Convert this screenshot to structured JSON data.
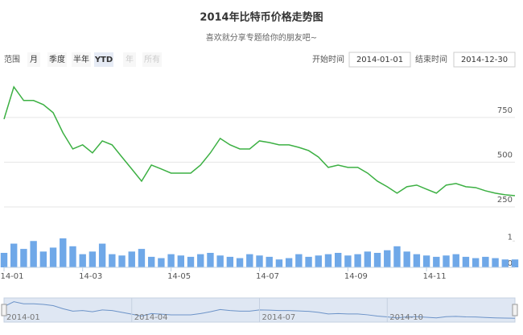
{
  "title": "2014年比特币价格走势图",
  "subtitle": "喜欢就分享专题给你的朋友吧~",
  "range_selector": {
    "label": "范围",
    "buttons": [
      "月",
      "季度",
      "半年",
      "YTD",
      "年",
      "所有"
    ],
    "selected": "YTD",
    "disabled": [
      "年",
      "所有"
    ]
  },
  "date_inputs": {
    "start_label": "开始时间",
    "start": "2014-01-01",
    "end_label": "结束时间",
    "end": "2014-12-30"
  },
  "navigator": {
    "labels": [
      "2014-01",
      "2014-04",
      "2014-07",
      "2014-10"
    ]
  },
  "chart_data": [
    {
      "type": "line",
      "color": "#3cb043",
      "categories": [
        "14-01",
        null,
        null,
        null,
        null,
        null,
        null,
        null,
        "14-03",
        null,
        null,
        null,
        null,
        null,
        null,
        null,
        null,
        "14-05",
        null,
        null,
        null,
        null,
        null,
        null,
        null,
        null,
        "14-07",
        null,
        null,
        null,
        null,
        null,
        null,
        null,
        null,
        "14-09",
        null,
        null,
        null,
        null,
        null,
        null,
        null,
        "14-11",
        null,
        null,
        null,
        null,
        null,
        null,
        null,
        null,
        null
      ],
      "values": [
        741,
        921,
        845,
        845,
        822,
        777,
        664,
        574,
        597,
        552,
        619,
        597,
        529,
        462,
        394,
        484,
        462,
        439,
        439,
        439,
        484,
        552,
        633,
        597,
        574,
        574,
        619,
        610,
        597,
        597,
        583,
        565,
        529,
        471,
        484,
        471,
        471,
        439,
        394,
        363,
        327,
        363,
        372,
        349,
        327,
        372,
        381,
        363,
        358,
        340,
        327,
        318,
        313
      ],
      "ylim": [
        230,
        970
      ],
      "yticks": [
        250,
        500,
        750
      ],
      "grid": true
    },
    {
      "type": "bar",
      "color": "#6fa8e8",
      "values": [
        0.55,
        0.9,
        0.7,
        1.0,
        0.6,
        0.75,
        1.1,
        0.8,
        0.5,
        0.6,
        0.9,
        0.5,
        0.45,
        0.6,
        0.7,
        0.4,
        0.35,
        0.5,
        0.45,
        0.4,
        0.5,
        0.55,
        0.45,
        0.4,
        0.35,
        0.5,
        0.45,
        0.4,
        0.3,
        0.35,
        0.5,
        0.4,
        0.45,
        0.5,
        0.55,
        0.45,
        0.5,
        0.6,
        0.55,
        0.65,
        0.8,
        0.6,
        0.5,
        0.45,
        0.4,
        0.45,
        0.5,
        0.4,
        0.35,
        0.4,
        0.35,
        0.3,
        0.3
      ],
      "ylim": [
        0,
        1.1
      ],
      "yticks": [
        0,
        1
      ]
    }
  ]
}
